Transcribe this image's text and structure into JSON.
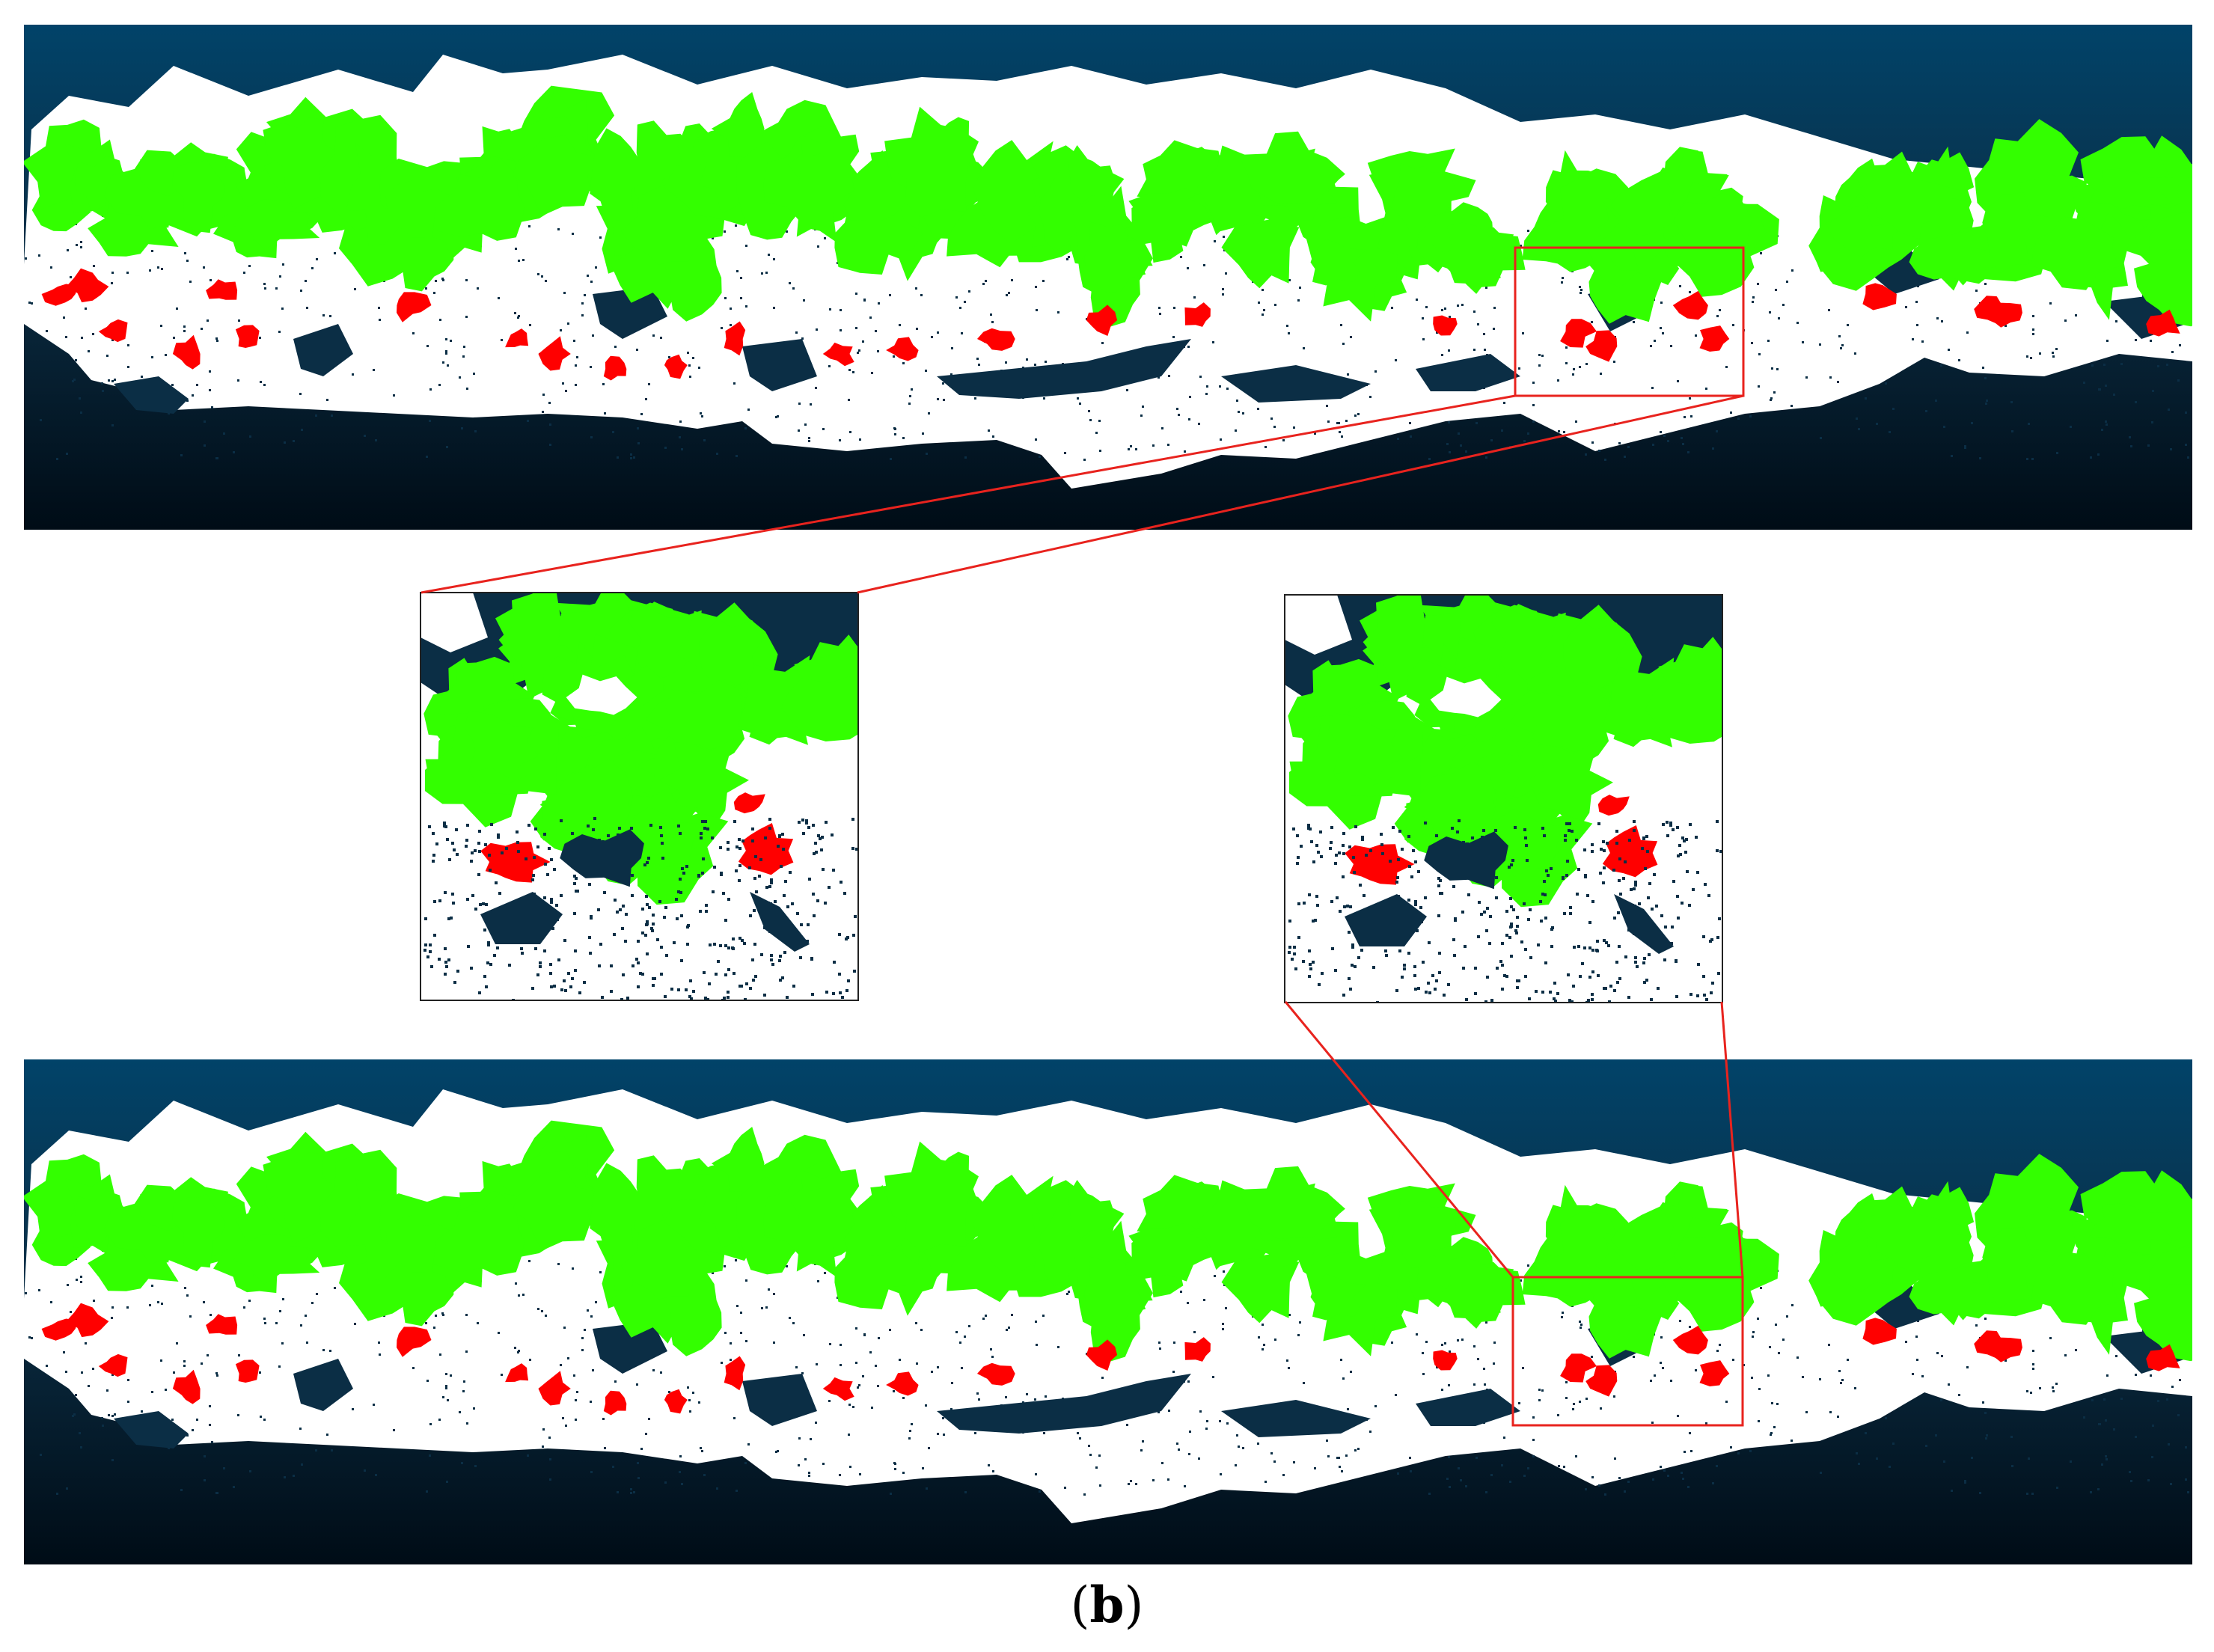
{
  "figure": {
    "caption_open": "(",
    "caption_letter": "b",
    "caption_close": ")"
  },
  "colors": {
    "background_top": "#014369",
    "background_mid": "#0b2e45",
    "background_bottom": "#000c16",
    "point_cloud": "#ffffff",
    "vegetation": "#33ff00",
    "detected_objects": "#ff0000",
    "highlight_box": "#e8231e"
  }
}
